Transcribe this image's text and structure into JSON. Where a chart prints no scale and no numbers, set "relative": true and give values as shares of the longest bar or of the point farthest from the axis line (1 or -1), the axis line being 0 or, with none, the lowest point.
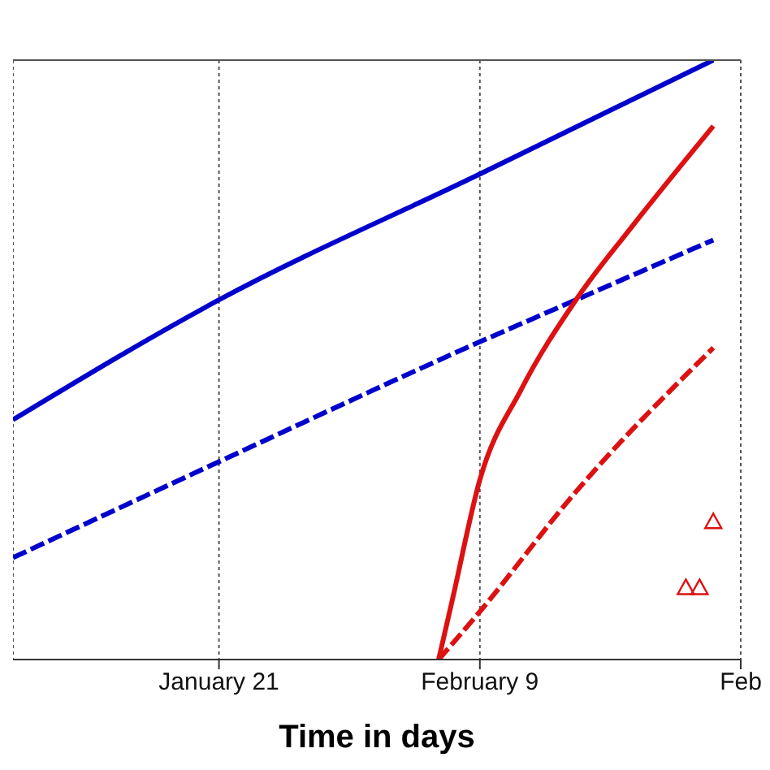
{
  "chart_data": {
    "type": "line",
    "xlabel": "Time in days",
    "relative": true,
    "grid": "x",
    "xlim": [
      "--01-06",
      "--02-28"
    ],
    "xticks": [
      {
        "value": "--01-21",
        "label": "January 21"
      },
      {
        "value": "--02-09",
        "label": "February 9"
      },
      {
        "value": "--02-28",
        "label": "Feb"
      }
    ],
    "series": [
      {
        "color": "#0000cc",
        "line_style": "solid",
        "x": [
          "--01-06",
          "--01-21",
          "--02-09",
          "--02-26"
        ],
        "values": [
          0.4,
          0.6,
          0.81,
          1.0
        ]
      },
      {
        "color": "#0000cc",
        "line_style": "dashed",
        "x": [
          "--01-06",
          "--01-21",
          "--02-09",
          "--02-16",
          "--02-26"
        ],
        "values": [
          0.17,
          0.33,
          0.53,
          0.6,
          0.7
        ]
      },
      {
        "color": "#dd1111",
        "line_style": "solid",
        "x": [
          "--02-06",
          "--02-07",
          "--02-09",
          "--02-12",
          "--02-16",
          "--02-20",
          "--02-26"
        ],
        "values": [
          0,
          0.1,
          0.3,
          0.45,
          0.6,
          0.72,
          0.89
        ]
      },
      {
        "color": "#dd1111",
        "line_style": "dashed",
        "x": [
          "--02-06",
          "--02-09",
          "--02-16",
          "--02-26"
        ],
        "values": [
          0,
          0.08,
          0.28,
          0.52
        ]
      },
      {
        "type": "scatter",
        "color": "#dd1111",
        "marker": "triangle",
        "x": [
          "--02-24",
          "--02-25",
          "--02-26"
        ],
        "values": [
          0.12,
          0.12,
          0.23
        ]
      }
    ]
  }
}
